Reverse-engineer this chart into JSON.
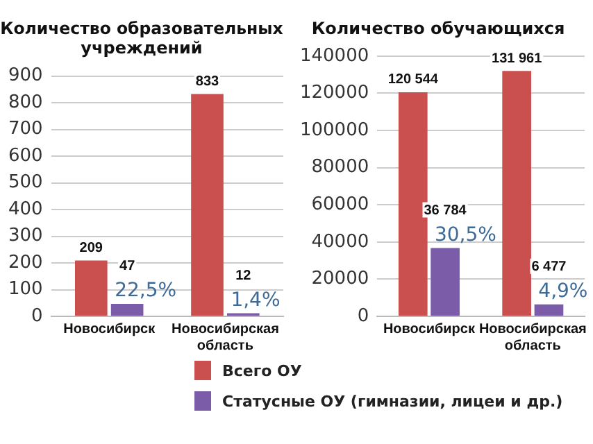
{
  "chart_data": [
    {
      "type": "bar",
      "title": "Количество образовательных учреждений",
      "categories": [
        "Новосибирск",
        "Новосибирская область"
      ],
      "series": [
        {
          "name": "Всего ОУ",
          "color": "#c9504f",
          "values": [
            209,
            833
          ],
          "value_labels": [
            "209",
            "833"
          ]
        },
        {
          "name": "Статусные ОУ (гимназии, лицеи и др.)",
          "color": "#7a5ca8",
          "values": [
            47,
            12
          ],
          "value_labels": [
            "47",
            "12"
          ]
        }
      ],
      "ylim": [
        0,
        900
      ],
      "yticks": [
        0,
        100,
        200,
        300,
        400,
        500,
        600,
        700,
        800,
        900
      ],
      "grid": "y",
      "legend": "bottom",
      "annotations": [
        {
          "text": "22,5%",
          "x": "Новосибирск",
          "y": 47
        },
        {
          "text": "1,4%",
          "x": "Новосибирская область",
          "y": 12
        }
      ]
    },
    {
      "type": "bar",
      "title": "Количество обучающихся",
      "categories": [
        "Новосибирск",
        "Новосибирская область"
      ],
      "series": [
        {
          "color": "#c9504f",
          "values": [
            120544,
            131961
          ],
          "value_labels": [
            "120 544",
            "131 961"
          ]
        },
        {
          "color": "#7a5ca8",
          "values": [
            36784,
            6477
          ],
          "value_labels": [
            "36 784",
            "6 477"
          ]
        }
      ],
      "ylim": [
        0,
        140000
      ],
      "yticks": [
        0,
        20000,
        40000,
        60000,
        80000,
        100000,
        120000,
        140000
      ],
      "grid": "y",
      "annotations": [
        {
          "text": "30,5%",
          "x": "Новосибирск",
          "y": 36784
        },
        {
          "text": "4,9%",
          "x": "Новосибирская область",
          "y": 6477
        }
      ]
    }
  ]
}
